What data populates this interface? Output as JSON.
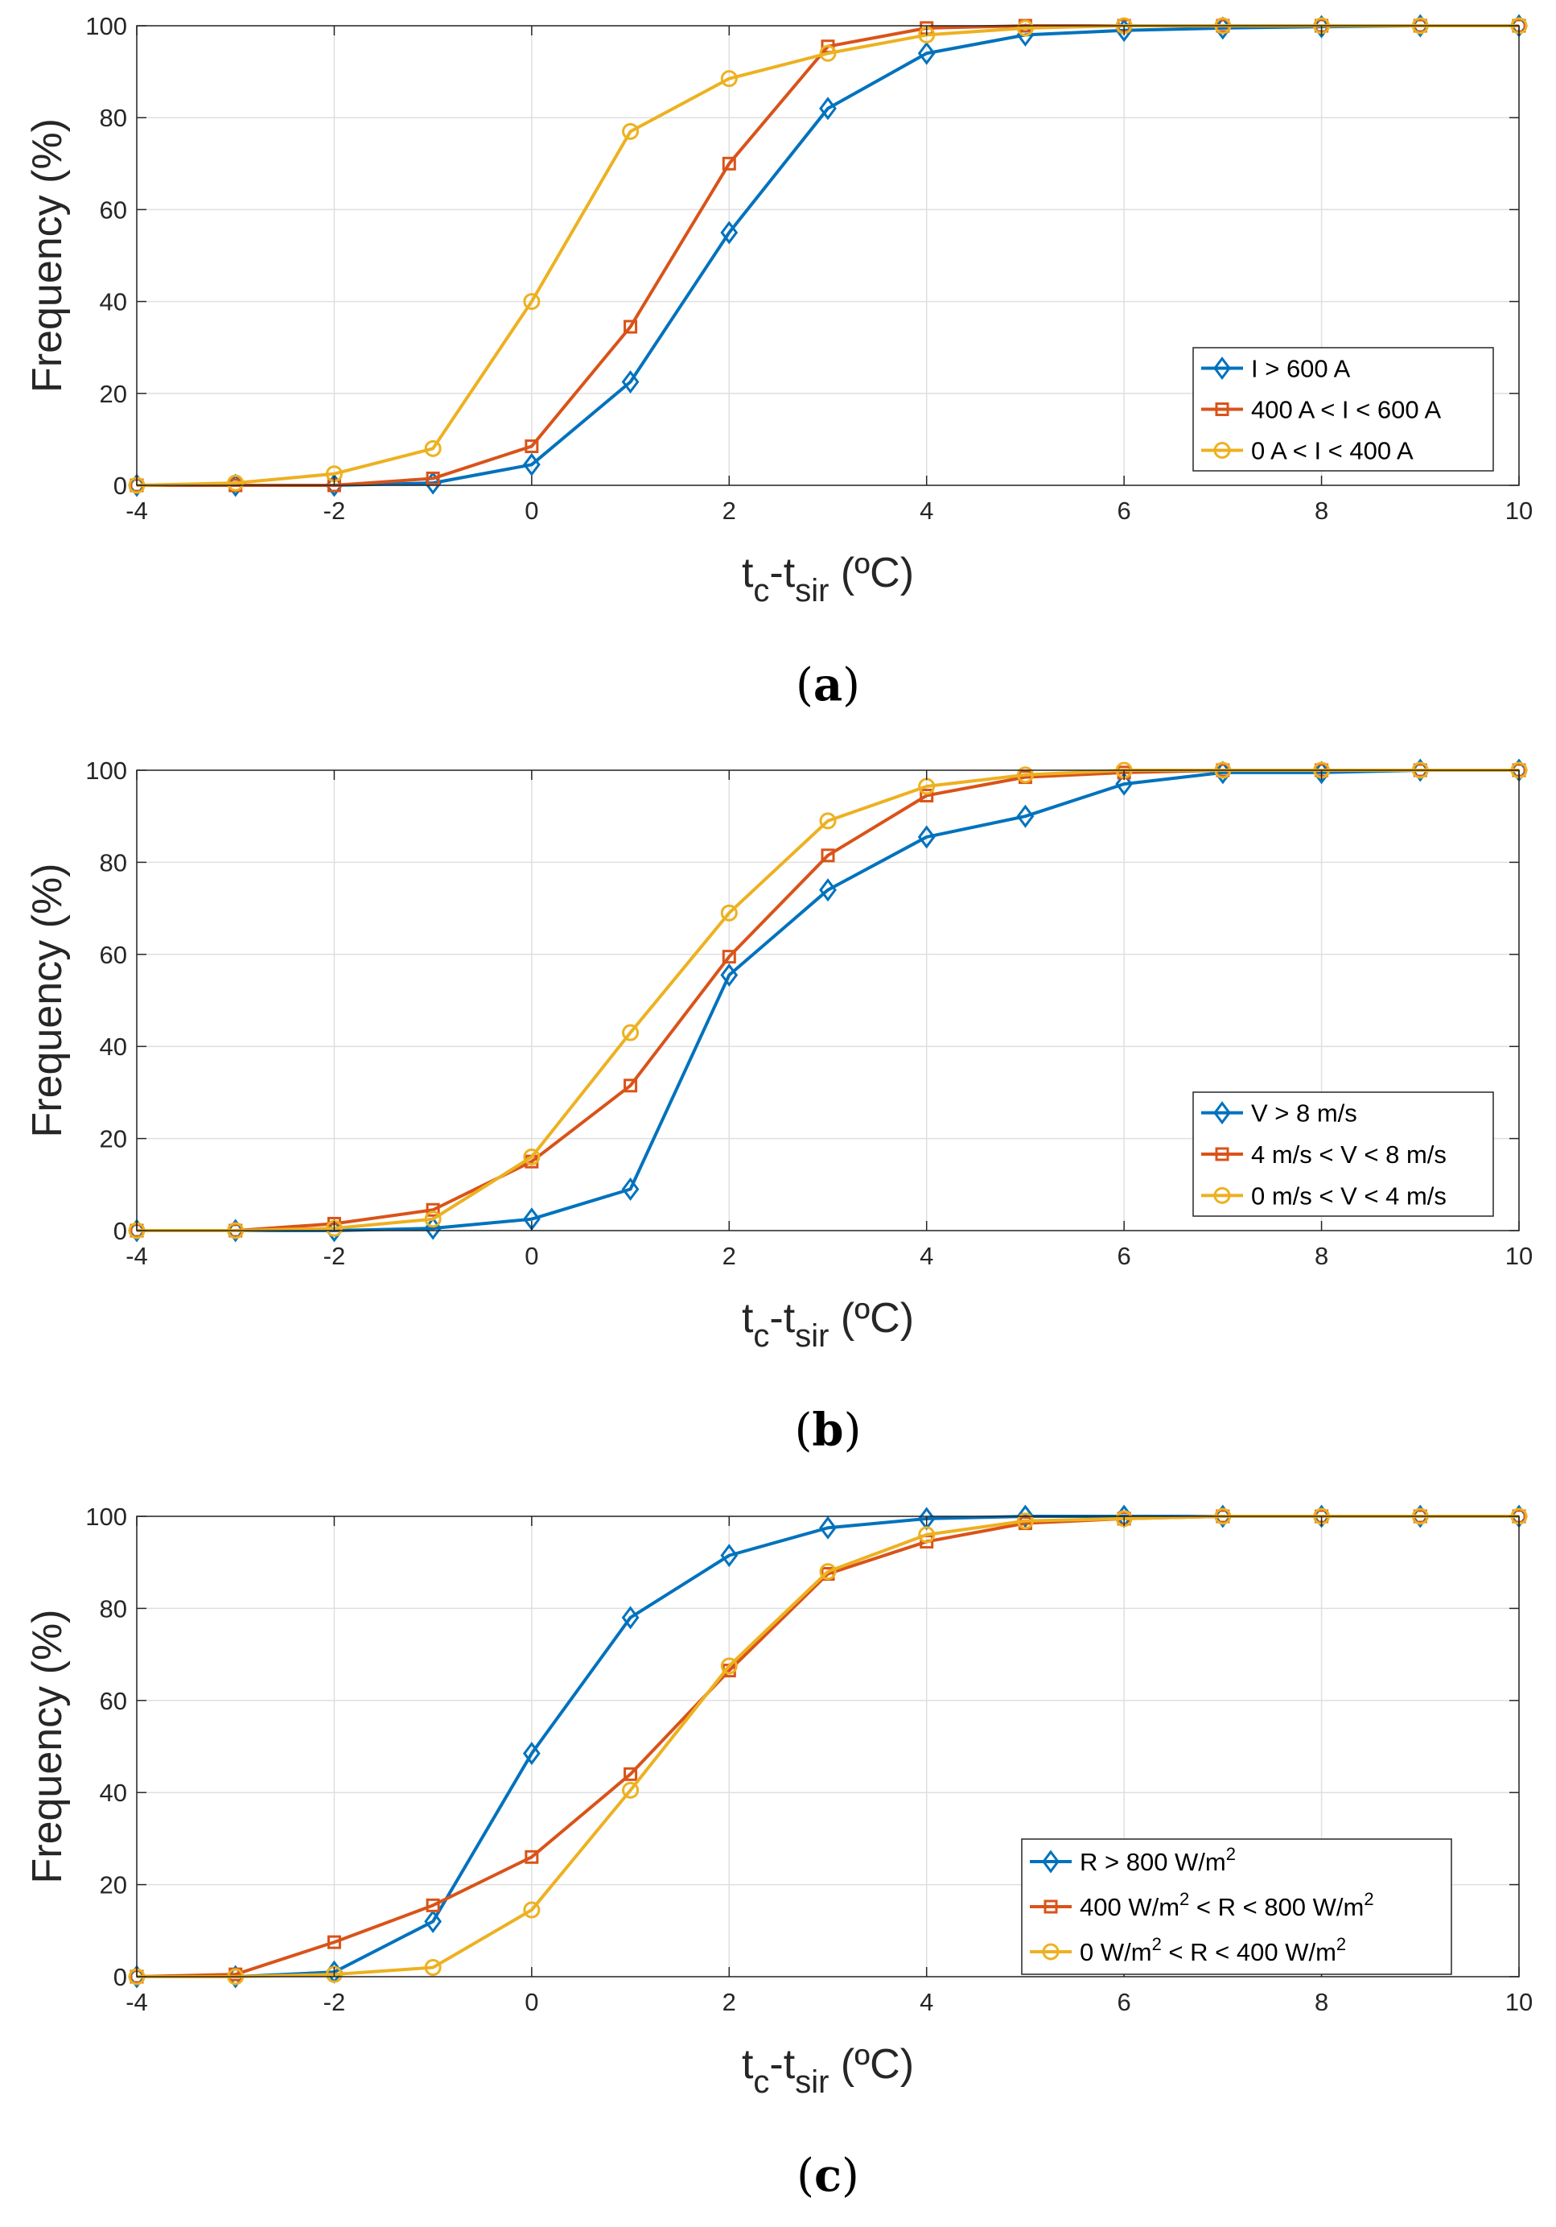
{
  "colors": {
    "blue": "#0072BD",
    "orange": "#D95319",
    "yellow": "#EDB120",
    "grid": "#DFDFDF",
    "axis": "#262626"
  },
  "chart_data": [
    {
      "id": "a",
      "type": "line",
      "panel_label": {
        "open": "(",
        "letter": "a",
        "close": ")"
      },
      "xlabel": {
        "t": "t",
        "c": "c",
        "dash": "-t",
        "sir": "sir",
        "unit": " (ºC)"
      },
      "ylabel": "Frequency (%)",
      "xlim": [
        -4,
        10
      ],
      "ylim": [
        0,
        100
      ],
      "xticks": [
        "-4",
        "-2",
        "0",
        "2",
        "4",
        "6",
        "8",
        "10"
      ],
      "yticks": [
        "0",
        "20",
        "40",
        "60",
        "80",
        "100"
      ],
      "grid": true,
      "legend_position": "lower-right",
      "x": [
        -4,
        -3,
        -2,
        -1,
        0,
        1,
        2,
        3,
        4,
        5,
        6,
        7,
        8,
        9,
        10
      ],
      "series": [
        {
          "name": "I > 600 A",
          "marker": "diamond",
          "color": "#0072BD",
          "label": [
            {
              "t": "I > 600 A"
            }
          ],
          "values": [
            0,
            0,
            0,
            0.5,
            4.5,
            22.5,
            55,
            82,
            94,
            98,
            99,
            99.5,
            99.8,
            100,
            100
          ]
        },
        {
          "name": "400 A < I < 600 A",
          "marker": "square",
          "color": "#D95319",
          "label": [
            {
              "t": "400 A < I < 600 A"
            }
          ],
          "values": [
            0,
            0,
            0,
            1.5,
            8.5,
            34.5,
            70,
            95.5,
            99.5,
            100,
            100,
            100,
            100,
            100,
            100
          ]
        },
        {
          "name": "0 A < I < 400 A",
          "marker": "circle",
          "color": "#EDB120",
          "label": [
            {
              "t": "0 A < I < 400 A"
            }
          ],
          "values": [
            0,
            0.5,
            2.5,
            8,
            40,
            77,
            88.5,
            94,
            98,
            99.5,
            100,
            100,
            100,
            100,
            100
          ]
        }
      ]
    },
    {
      "id": "b",
      "type": "line",
      "panel_label": {
        "open": "(",
        "letter": "b",
        "close": ")"
      },
      "xlabel": {
        "t": "t",
        "c": "c",
        "dash": "-t",
        "sir": "sir",
        "unit": " (ºC)"
      },
      "ylabel": "Frequency (%)",
      "xlim": [
        -4,
        10
      ],
      "ylim": [
        0,
        100
      ],
      "xticks": [
        "-4",
        "-2",
        "0",
        "2",
        "4",
        "6",
        "8",
        "10"
      ],
      "yticks": [
        "0",
        "20",
        "40",
        "60",
        "80",
        "100"
      ],
      "grid": true,
      "legend_position": "lower-right",
      "x": [
        -4,
        -3,
        -2,
        -1,
        0,
        1,
        2,
        3,
        4,
        5,
        6,
        7,
        8,
        9,
        10
      ],
      "series": [
        {
          "name": "V > 8 m/s",
          "marker": "diamond",
          "color": "#0072BD",
          "label": [
            {
              "t": "V > 8 m/s"
            }
          ],
          "values": [
            0,
            0,
            0,
            0.5,
            2.5,
            9,
            55.5,
            74,
            85.5,
            90,
            97,
            99.5,
            99.5,
            100,
            100
          ]
        },
        {
          "name": "4 m/s < V < 8 m/s",
          "marker": "square",
          "color": "#D95319",
          "label": [
            {
              "t": "4 m/s < V < 8 m/s"
            }
          ],
          "values": [
            0,
            0,
            1.5,
            4.5,
            15,
            31.5,
            59.5,
            81.5,
            94.5,
            98.5,
            99.5,
            100,
            100,
            100,
            100
          ]
        },
        {
          "name": "0 m/s < V < 4 m/s",
          "marker": "circle",
          "color": "#EDB120",
          "label": [
            {
              "t": "0 m/s < V < 4 m/s"
            }
          ],
          "values": [
            0,
            0,
            0.5,
            2.5,
            16,
            43,
            69,
            89,
            96.5,
            99,
            100,
            100,
            100,
            100,
            100
          ]
        }
      ]
    },
    {
      "id": "c",
      "type": "line",
      "panel_label": {
        "open": "(",
        "letter": "c",
        "close": ")"
      },
      "xlabel": {
        "t": "t",
        "c": "c",
        "dash": "-t",
        "sir": "sir",
        "unit": " (ºC)"
      },
      "ylabel": "Frequency (%)",
      "xlim": [
        -4,
        10
      ],
      "ylim": [
        0,
        100
      ],
      "xticks": [
        "-4",
        "-2",
        "0",
        "2",
        "4",
        "6",
        "8",
        "10"
      ],
      "yticks": [
        "0",
        "20",
        "40",
        "60",
        "80",
        "100"
      ],
      "grid": true,
      "legend_position": "lower-right",
      "x": [
        -4,
        -3,
        -2,
        -1,
        0,
        1,
        2,
        3,
        4,
        5,
        6,
        7,
        8,
        9,
        10
      ],
      "series": [
        {
          "name": "R > 800 W/m2",
          "marker": "diamond",
          "color": "#0072BD",
          "label": [
            {
              "t": "R > 800 W/m"
            },
            {
              "t": "2",
              "sup": true
            }
          ],
          "values": [
            0,
            0,
            1,
            12,
            48.5,
            78,
            91.5,
            97.5,
            99.5,
            100,
            100,
            100,
            100,
            100,
            100
          ]
        },
        {
          "name": "400 W/m2 < R < 800 W/m2",
          "marker": "square",
          "color": "#D95319",
          "label": [
            {
              "t": "400 W/m"
            },
            {
              "t": "2",
              "sup": true
            },
            {
              "t": " < R < 800 W/m"
            },
            {
              "t": "2",
              "sup": true
            }
          ],
          "values": [
            0,
            0.5,
            7.5,
            15.5,
            26,
            44,
            66.5,
            87.5,
            94.5,
            98.5,
            99.5,
            100,
            100,
            100,
            100
          ]
        },
        {
          "name": "0 W/m2 < R < 400 W/m2",
          "marker": "circle",
          "color": "#EDB120",
          "label": [
            {
              "t": "0 W/m"
            },
            {
              "t": "2",
              "sup": true
            },
            {
              "t": " < R < 400 W/m"
            },
            {
              "t": "2",
              "sup": true
            }
          ],
          "values": [
            0,
            0,
            0.5,
            2,
            14.5,
            40.5,
            67.5,
            88,
            96,
            99,
            99.5,
            100,
            100,
            100,
            100
          ]
        }
      ]
    }
  ]
}
